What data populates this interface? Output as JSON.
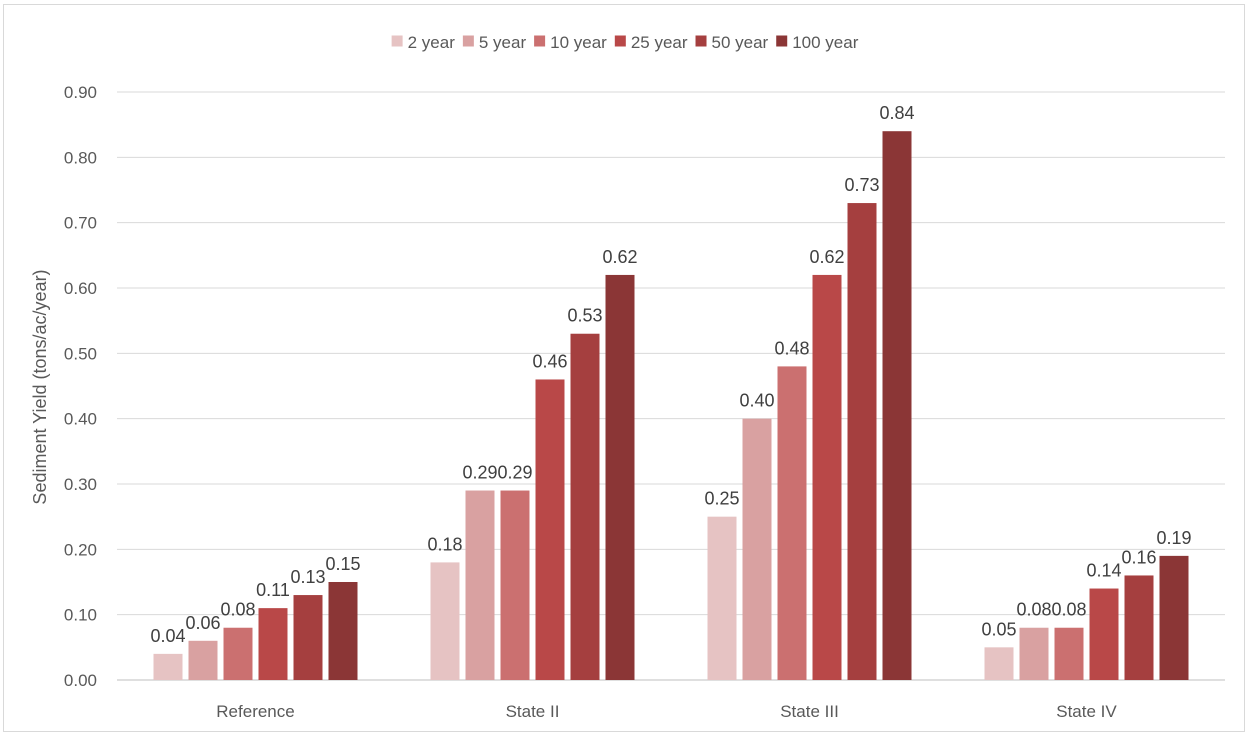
{
  "chart_data": {
    "type": "bar",
    "categories": [
      "Reference",
      "State II",
      "State III",
      "State IV"
    ],
    "series": [
      {
        "name": "2 year",
        "color": "#e6c3c3",
        "values": [
          0.04,
          0.18,
          0.25,
          0.05
        ]
      },
      {
        "name": "5 year",
        "color": "#d9a1a1",
        "values": [
          0.06,
          0.29,
          0.4,
          0.08
        ]
      },
      {
        "name": "10 year",
        "color": "#cb7070",
        "values": [
          0.08,
          0.29,
          0.48,
          0.08
        ]
      },
      {
        "name": "25 year",
        "color": "#b94848",
        "values": [
          0.11,
          0.46,
          0.62,
          0.14
        ]
      },
      {
        "name": "50 year",
        "color": "#a53f3f",
        "values": [
          0.13,
          0.53,
          0.73,
          0.16
        ]
      },
      {
        "name": "100 year",
        "color": "#8b3636",
        "values": [
          0.15,
          0.62,
          0.84,
          0.19
        ]
      }
    ],
    "value_labels": [
      [
        "0.04",
        "0.18",
        "0.25",
        "0.05"
      ],
      [
        "0.06",
        "0.29",
        "0.40",
        "0.08"
      ],
      [
        "0.08",
        "0.29",
        "0.48",
        "0.08"
      ],
      [
        "0.11",
        "0.46",
        "0.62",
        "0.14"
      ],
      [
        "0.13",
        "0.53",
        "0.73",
        "0.16"
      ],
      [
        "0.15",
        "0.62",
        "0.84",
        "0.19"
      ]
    ],
    "title": "",
    "xlabel": "",
    "ylabel": "Sediment Yield (tons/ac/year)",
    "ylim": [
      0,
      0.9
    ],
    "yticks": [
      "0.00",
      "0.10",
      "0.20",
      "0.30",
      "0.40",
      "0.50",
      "0.60",
      "0.70",
      "0.80",
      "0.90"
    ],
    "grid": true,
    "legend_position": "top"
  }
}
